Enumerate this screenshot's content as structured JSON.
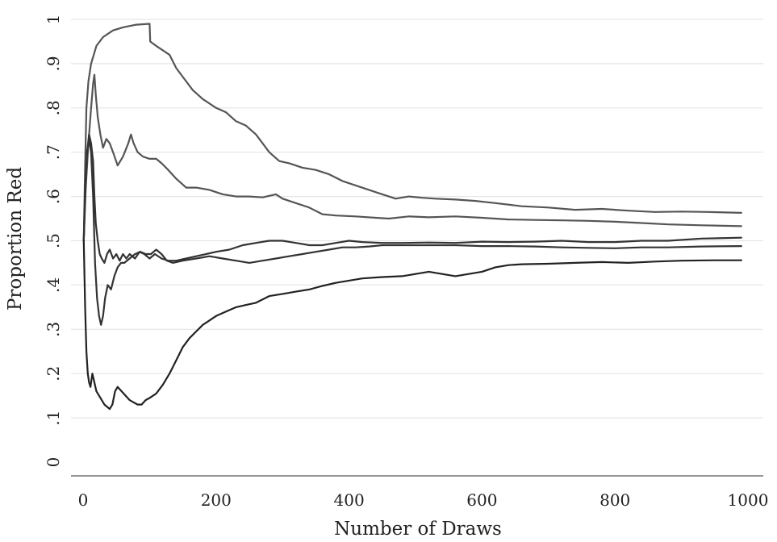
{
  "chart_data": {
    "type": "line",
    "title": "",
    "xlabel": "Number of Draws",
    "ylabel": "Proportion Red",
    "xlim": [
      0,
      1000
    ],
    "ylim": [
      0,
      1
    ],
    "grid": true,
    "x_ticks": [
      0,
      200,
      400,
      600,
      800,
      1000
    ],
    "x_tick_labels": [
      "0",
      "200",
      "400",
      "600",
      "800",
      "1000"
    ],
    "y_ticks": [
      0,
      0.1,
      0.2,
      0.3,
      0.4,
      0.5,
      0.6,
      0.7,
      0.8,
      0.9,
      1
    ],
    "y_tick_labels": [
      "0",
      ".1",
      ".2",
      ".3",
      ".4",
      ".5",
      ".6",
      ".7",
      ".8",
      ".9",
      "1"
    ],
    "series": [
      {
        "color": "#555555",
        "points": [
          [
            1,
            0.5
          ],
          [
            3,
            0.67
          ],
          [
            5,
            0.8
          ],
          [
            8,
            0.86
          ],
          [
            12,
            0.9
          ],
          [
            20,
            0.94
          ],
          [
            30,
            0.96
          ],
          [
            45,
            0.975
          ],
          [
            60,
            0.982
          ],
          [
            80,
            0.988
          ],
          [
            100,
            0.99
          ],
          [
            101,
            0.95
          ],
          [
            110,
            0.94
          ],
          [
            120,
            0.93
          ],
          [
            130,
            0.92
          ],
          [
            140,
            0.89
          ],
          [
            150,
            0.87
          ],
          [
            165,
            0.84
          ],
          [
            180,
            0.82
          ],
          [
            200,
            0.8
          ],
          [
            215,
            0.79
          ],
          [
            230,
            0.77
          ],
          [
            245,
            0.76
          ],
          [
            260,
            0.74
          ],
          [
            270,
            0.72
          ],
          [
            280,
            0.7
          ],
          [
            295,
            0.68
          ],
          [
            310,
            0.675
          ],
          [
            330,
            0.665
          ],
          [
            350,
            0.66
          ],
          [
            370,
            0.65
          ],
          [
            390,
            0.635
          ],
          [
            410,
            0.625
          ],
          [
            430,
            0.615
          ],
          [
            450,
            0.605
          ],
          [
            460,
            0.6
          ],
          [
            470,
            0.595
          ],
          [
            490,
            0.6
          ],
          [
            510,
            0.597
          ],
          [
            530,
            0.595
          ],
          [
            560,
            0.593
          ],
          [
            590,
            0.59
          ],
          [
            620,
            0.585
          ],
          [
            660,
            0.578
          ],
          [
            700,
            0.575
          ],
          [
            740,
            0.57
          ],
          [
            780,
            0.572
          ],
          [
            820,
            0.568
          ],
          [
            860,
            0.565
          ],
          [
            900,
            0.566
          ],
          [
            940,
            0.565
          ],
          [
            990,
            0.563
          ]
        ]
      },
      {
        "color": "#555555",
        "points": [
          [
            1,
            0.5
          ],
          [
            4,
            0.62
          ],
          [
            8,
            0.72
          ],
          [
            12,
            0.8
          ],
          [
            15,
            0.855
          ],
          [
            17,
            0.875
          ],
          [
            19,
            0.83
          ],
          [
            22,
            0.78
          ],
          [
            26,
            0.74
          ],
          [
            30,
            0.71
          ],
          [
            35,
            0.73
          ],
          [
            40,
            0.72
          ],
          [
            45,
            0.7
          ],
          [
            52,
            0.67
          ],
          [
            60,
            0.69
          ],
          [
            68,
            0.72
          ],
          [
            72,
            0.74
          ],
          [
            76,
            0.72
          ],
          [
            82,
            0.7
          ],
          [
            90,
            0.69
          ],
          [
            100,
            0.685
          ],
          [
            110,
            0.685
          ],
          [
            118,
            0.675
          ],
          [
            128,
            0.66
          ],
          [
            140,
            0.64
          ],
          [
            155,
            0.62
          ],
          [
            170,
            0.62
          ],
          [
            190,
            0.615
          ],
          [
            210,
            0.605
          ],
          [
            230,
            0.6
          ],
          [
            250,
            0.6
          ],
          [
            270,
            0.598
          ],
          [
            290,
            0.605
          ],
          [
            300,
            0.595
          ],
          [
            320,
            0.585
          ],
          [
            340,
            0.575
          ],
          [
            360,
            0.56
          ],
          [
            380,
            0.557
          ],
          [
            410,
            0.555
          ],
          [
            440,
            0.552
          ],
          [
            460,
            0.55
          ],
          [
            490,
            0.555
          ],
          [
            520,
            0.553
          ],
          [
            560,
            0.555
          ],
          [
            600,
            0.552
          ],
          [
            640,
            0.548
          ],
          [
            680,
            0.547
          ],
          [
            720,
            0.546
          ],
          [
            760,
            0.545
          ],
          [
            800,
            0.543
          ],
          [
            840,
            0.54
          ],
          [
            880,
            0.537
          ],
          [
            930,
            0.535
          ],
          [
            990,
            0.533
          ]
        ]
      },
      {
        "color": "#333333",
        "points": [
          [
            1,
            0.5
          ],
          [
            3,
            0.6
          ],
          [
            6,
            0.7
          ],
          [
            9,
            0.74
          ],
          [
            12,
            0.72
          ],
          [
            15,
            0.68
          ],
          [
            17,
            0.6
          ],
          [
            19,
            0.54
          ],
          [
            22,
            0.5
          ],
          [
            25,
            0.47
          ],
          [
            28,
            0.46
          ],
          [
            32,
            0.45
          ],
          [
            36,
            0.47
          ],
          [
            40,
            0.48
          ],
          [
            45,
            0.46
          ],
          [
            50,
            0.47
          ],
          [
            55,
            0.455
          ],
          [
            60,
            0.47
          ],
          [
            65,
            0.46
          ],
          [
            70,
            0.47
          ],
          [
            78,
            0.46
          ],
          [
            85,
            0.475
          ],
          [
            92,
            0.47
          ],
          [
            100,
            0.46
          ],
          [
            108,
            0.47
          ],
          [
            118,
            0.46
          ],
          [
            128,
            0.455
          ],
          [
            140,
            0.455
          ],
          [
            155,
            0.46
          ],
          [
            170,
            0.465
          ],
          [
            185,
            0.47
          ],
          [
            200,
            0.475
          ],
          [
            220,
            0.48
          ],
          [
            240,
            0.49
          ],
          [
            260,
            0.495
          ],
          [
            280,
            0.5
          ],
          [
            300,
            0.5
          ],
          [
            320,
            0.495
          ],
          [
            340,
            0.49
          ],
          [
            360,
            0.49
          ],
          [
            380,
            0.495
          ],
          [
            400,
            0.5
          ],
          [
            420,
            0.497
          ],
          [
            450,
            0.495
          ],
          [
            480,
            0.495
          ],
          [
            520,
            0.496
          ],
          [
            560,
            0.495
          ],
          [
            600,
            0.498
          ],
          [
            640,
            0.497
          ],
          [
            680,
            0.498
          ],
          [
            720,
            0.5
          ],
          [
            760,
            0.497
          ],
          [
            800,
            0.497
          ],
          [
            840,
            0.5
          ],
          [
            880,
            0.5
          ],
          [
            930,
            0.505
          ],
          [
            990,
            0.507
          ]
        ]
      },
      {
        "color": "#333333",
        "points": [
          [
            1,
            0.5
          ],
          [
            3,
            0.62
          ],
          [
            6,
            0.7
          ],
          [
            9,
            0.73
          ],
          [
            12,
            0.7
          ],
          [
            15,
            0.6
          ],
          [
            18,
            0.45
          ],
          [
            21,
            0.37
          ],
          [
            24,
            0.33
          ],
          [
            27,
            0.31
          ],
          [
            30,
            0.33
          ],
          [
            33,
            0.37
          ],
          [
            37,
            0.4
          ],
          [
            42,
            0.39
          ],
          [
            47,
            0.42
          ],
          [
            52,
            0.44
          ],
          [
            57,
            0.45
          ],
          [
            62,
            0.45
          ],
          [
            70,
            0.46
          ],
          [
            78,
            0.47
          ],
          [
            86,
            0.475
          ],
          [
            94,
            0.47
          ],
          [
            102,
            0.47
          ],
          [
            110,
            0.48
          ],
          [
            118,
            0.47
          ],
          [
            126,
            0.455
          ],
          [
            135,
            0.45
          ],
          [
            150,
            0.455
          ],
          [
            170,
            0.46
          ],
          [
            190,
            0.465
          ],
          [
            210,
            0.46
          ],
          [
            230,
            0.455
          ],
          [
            250,
            0.45
          ],
          [
            270,
            0.455
          ],
          [
            290,
            0.46
          ],
          [
            310,
            0.465
          ],
          [
            330,
            0.47
          ],
          [
            350,
            0.475
          ],
          [
            370,
            0.48
          ],
          [
            390,
            0.485
          ],
          [
            410,
            0.485
          ],
          [
            430,
            0.487
          ],
          [
            450,
            0.49
          ],
          [
            480,
            0.49
          ],
          [
            520,
            0.49
          ],
          [
            560,
            0.49
          ],
          [
            600,
            0.488
          ],
          [
            640,
            0.488
          ],
          [
            680,
            0.487
          ],
          [
            720,
            0.485
          ],
          [
            760,
            0.484
          ],
          [
            800,
            0.483
          ],
          [
            840,
            0.485
          ],
          [
            880,
            0.485
          ],
          [
            930,
            0.487
          ],
          [
            990,
            0.488
          ]
        ]
      },
      {
        "color": "#222222",
        "points": [
          [
            1,
            0.5
          ],
          [
            3,
            0.35
          ],
          [
            5,
            0.25
          ],
          [
            7,
            0.2
          ],
          [
            9,
            0.18
          ],
          [
            11,
            0.17
          ],
          [
            14,
            0.2
          ],
          [
            17,
            0.18
          ],
          [
            20,
            0.16
          ],
          [
            24,
            0.15
          ],
          [
            28,
            0.14
          ],
          [
            32,
            0.13
          ],
          [
            36,
            0.125
          ],
          [
            40,
            0.12
          ],
          [
            44,
            0.13
          ],
          [
            48,
            0.16
          ],
          [
            52,
            0.17
          ],
          [
            58,
            0.16
          ],
          [
            64,
            0.15
          ],
          [
            70,
            0.14
          ],
          [
            76,
            0.135
          ],
          [
            82,
            0.13
          ],
          [
            88,
            0.13
          ],
          [
            94,
            0.14
          ],
          [
            100,
            0.145
          ],
          [
            110,
            0.155
          ],
          [
            120,
            0.175
          ],
          [
            130,
            0.2
          ],
          [
            140,
            0.23
          ],
          [
            150,
            0.26
          ],
          [
            160,
            0.28
          ],
          [
            170,
            0.295
          ],
          [
            180,
            0.31
          ],
          [
            190,
            0.32
          ],
          [
            200,
            0.33
          ],
          [
            215,
            0.34
          ],
          [
            230,
            0.35
          ],
          [
            245,
            0.355
          ],
          [
            260,
            0.36
          ],
          [
            280,
            0.375
          ],
          [
            300,
            0.38
          ],
          [
            320,
            0.385
          ],
          [
            340,
            0.39
          ],
          [
            360,
            0.398
          ],
          [
            380,
            0.405
          ],
          [
            400,
            0.41
          ],
          [
            420,
            0.415
          ],
          [
            450,
            0.418
          ],
          [
            480,
            0.42
          ],
          [
            500,
            0.425
          ],
          [
            520,
            0.43
          ],
          [
            540,
            0.425
          ],
          [
            560,
            0.42
          ],
          [
            580,
            0.425
          ],
          [
            600,
            0.43
          ],
          [
            620,
            0.44
          ],
          [
            640,
            0.445
          ],
          [
            660,
            0.447
          ],
          [
            700,
            0.448
          ],
          [
            740,
            0.45
          ],
          [
            780,
            0.452
          ],
          [
            820,
            0.45
          ],
          [
            860,
            0.453
          ],
          [
            900,
            0.455
          ],
          [
            950,
            0.456
          ],
          [
            990,
            0.456
          ]
        ]
      }
    ]
  }
}
